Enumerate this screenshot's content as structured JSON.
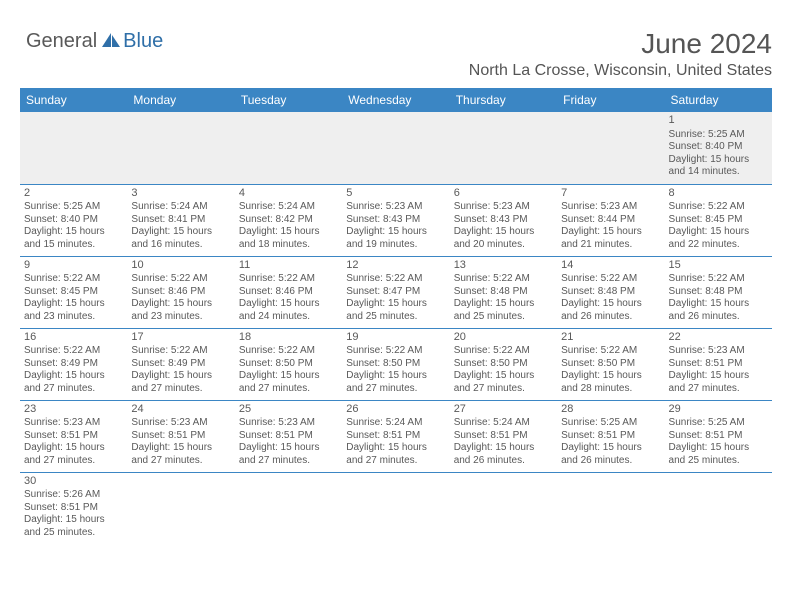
{
  "logo": {
    "part1": "General",
    "part2": "Blue"
  },
  "title": "June 2024",
  "location": "North La Crosse, Wisconsin, United States",
  "colors": {
    "header_bg": "#3b86c4",
    "header_text": "#ffffff",
    "body_text": "#595959",
    "logo_blue": "#2f6fa8",
    "page_bg": "#ffffff",
    "row_border": "#3b86c4",
    "empty_bg": "#efefef"
  },
  "typography": {
    "title_fontsize": 28,
    "location_fontsize": 16,
    "dayheader_fontsize": 12,
    "cell_fontsize": 10,
    "logo_fontsize": 20
  },
  "day_headers": [
    "Sunday",
    "Monday",
    "Tuesday",
    "Wednesday",
    "Thursday",
    "Friday",
    "Saturday"
  ],
  "weeks": [
    [
      null,
      null,
      null,
      null,
      null,
      null,
      {
        "n": "1",
        "sr": "Sunrise: 5:25 AM",
        "ss": "Sunset: 8:40 PM",
        "dl": "Daylight: 15 hours and 14 minutes."
      }
    ],
    [
      {
        "n": "2",
        "sr": "Sunrise: 5:25 AM",
        "ss": "Sunset: 8:40 PM",
        "dl": "Daylight: 15 hours and 15 minutes."
      },
      {
        "n": "3",
        "sr": "Sunrise: 5:24 AM",
        "ss": "Sunset: 8:41 PM",
        "dl": "Daylight: 15 hours and 16 minutes."
      },
      {
        "n": "4",
        "sr": "Sunrise: 5:24 AM",
        "ss": "Sunset: 8:42 PM",
        "dl": "Daylight: 15 hours and 18 minutes."
      },
      {
        "n": "5",
        "sr": "Sunrise: 5:23 AM",
        "ss": "Sunset: 8:43 PM",
        "dl": "Daylight: 15 hours and 19 minutes."
      },
      {
        "n": "6",
        "sr": "Sunrise: 5:23 AM",
        "ss": "Sunset: 8:43 PM",
        "dl": "Daylight: 15 hours and 20 minutes."
      },
      {
        "n": "7",
        "sr": "Sunrise: 5:23 AM",
        "ss": "Sunset: 8:44 PM",
        "dl": "Daylight: 15 hours and 21 minutes."
      },
      {
        "n": "8",
        "sr": "Sunrise: 5:22 AM",
        "ss": "Sunset: 8:45 PM",
        "dl": "Daylight: 15 hours and 22 minutes."
      }
    ],
    [
      {
        "n": "9",
        "sr": "Sunrise: 5:22 AM",
        "ss": "Sunset: 8:45 PM",
        "dl": "Daylight: 15 hours and 23 minutes."
      },
      {
        "n": "10",
        "sr": "Sunrise: 5:22 AM",
        "ss": "Sunset: 8:46 PM",
        "dl": "Daylight: 15 hours and 23 minutes."
      },
      {
        "n": "11",
        "sr": "Sunrise: 5:22 AM",
        "ss": "Sunset: 8:46 PM",
        "dl": "Daylight: 15 hours and 24 minutes."
      },
      {
        "n": "12",
        "sr": "Sunrise: 5:22 AM",
        "ss": "Sunset: 8:47 PM",
        "dl": "Daylight: 15 hours and 25 minutes."
      },
      {
        "n": "13",
        "sr": "Sunrise: 5:22 AM",
        "ss": "Sunset: 8:48 PM",
        "dl": "Daylight: 15 hours and 25 minutes."
      },
      {
        "n": "14",
        "sr": "Sunrise: 5:22 AM",
        "ss": "Sunset: 8:48 PM",
        "dl": "Daylight: 15 hours and 26 minutes."
      },
      {
        "n": "15",
        "sr": "Sunrise: 5:22 AM",
        "ss": "Sunset: 8:48 PM",
        "dl": "Daylight: 15 hours and 26 minutes."
      }
    ],
    [
      {
        "n": "16",
        "sr": "Sunrise: 5:22 AM",
        "ss": "Sunset: 8:49 PM",
        "dl": "Daylight: 15 hours and 27 minutes."
      },
      {
        "n": "17",
        "sr": "Sunrise: 5:22 AM",
        "ss": "Sunset: 8:49 PM",
        "dl": "Daylight: 15 hours and 27 minutes."
      },
      {
        "n": "18",
        "sr": "Sunrise: 5:22 AM",
        "ss": "Sunset: 8:50 PM",
        "dl": "Daylight: 15 hours and 27 minutes."
      },
      {
        "n": "19",
        "sr": "Sunrise: 5:22 AM",
        "ss": "Sunset: 8:50 PM",
        "dl": "Daylight: 15 hours and 27 minutes."
      },
      {
        "n": "20",
        "sr": "Sunrise: 5:22 AM",
        "ss": "Sunset: 8:50 PM",
        "dl": "Daylight: 15 hours and 27 minutes."
      },
      {
        "n": "21",
        "sr": "Sunrise: 5:22 AM",
        "ss": "Sunset: 8:50 PM",
        "dl": "Daylight: 15 hours and 28 minutes."
      },
      {
        "n": "22",
        "sr": "Sunrise: 5:23 AM",
        "ss": "Sunset: 8:51 PM",
        "dl": "Daylight: 15 hours and 27 minutes."
      }
    ],
    [
      {
        "n": "23",
        "sr": "Sunrise: 5:23 AM",
        "ss": "Sunset: 8:51 PM",
        "dl": "Daylight: 15 hours and 27 minutes."
      },
      {
        "n": "24",
        "sr": "Sunrise: 5:23 AM",
        "ss": "Sunset: 8:51 PM",
        "dl": "Daylight: 15 hours and 27 minutes."
      },
      {
        "n": "25",
        "sr": "Sunrise: 5:23 AM",
        "ss": "Sunset: 8:51 PM",
        "dl": "Daylight: 15 hours and 27 minutes."
      },
      {
        "n": "26",
        "sr": "Sunrise: 5:24 AM",
        "ss": "Sunset: 8:51 PM",
        "dl": "Daylight: 15 hours and 27 minutes."
      },
      {
        "n": "27",
        "sr": "Sunrise: 5:24 AM",
        "ss": "Sunset: 8:51 PM",
        "dl": "Daylight: 15 hours and 26 minutes."
      },
      {
        "n": "28",
        "sr": "Sunrise: 5:25 AM",
        "ss": "Sunset: 8:51 PM",
        "dl": "Daylight: 15 hours and 26 minutes."
      },
      {
        "n": "29",
        "sr": "Sunrise: 5:25 AM",
        "ss": "Sunset: 8:51 PM",
        "dl": "Daylight: 15 hours and 25 minutes."
      }
    ],
    [
      {
        "n": "30",
        "sr": "Sunrise: 5:26 AM",
        "ss": "Sunset: 8:51 PM",
        "dl": "Daylight: 15 hours and 25 minutes."
      },
      null,
      null,
      null,
      null,
      null,
      null
    ]
  ]
}
